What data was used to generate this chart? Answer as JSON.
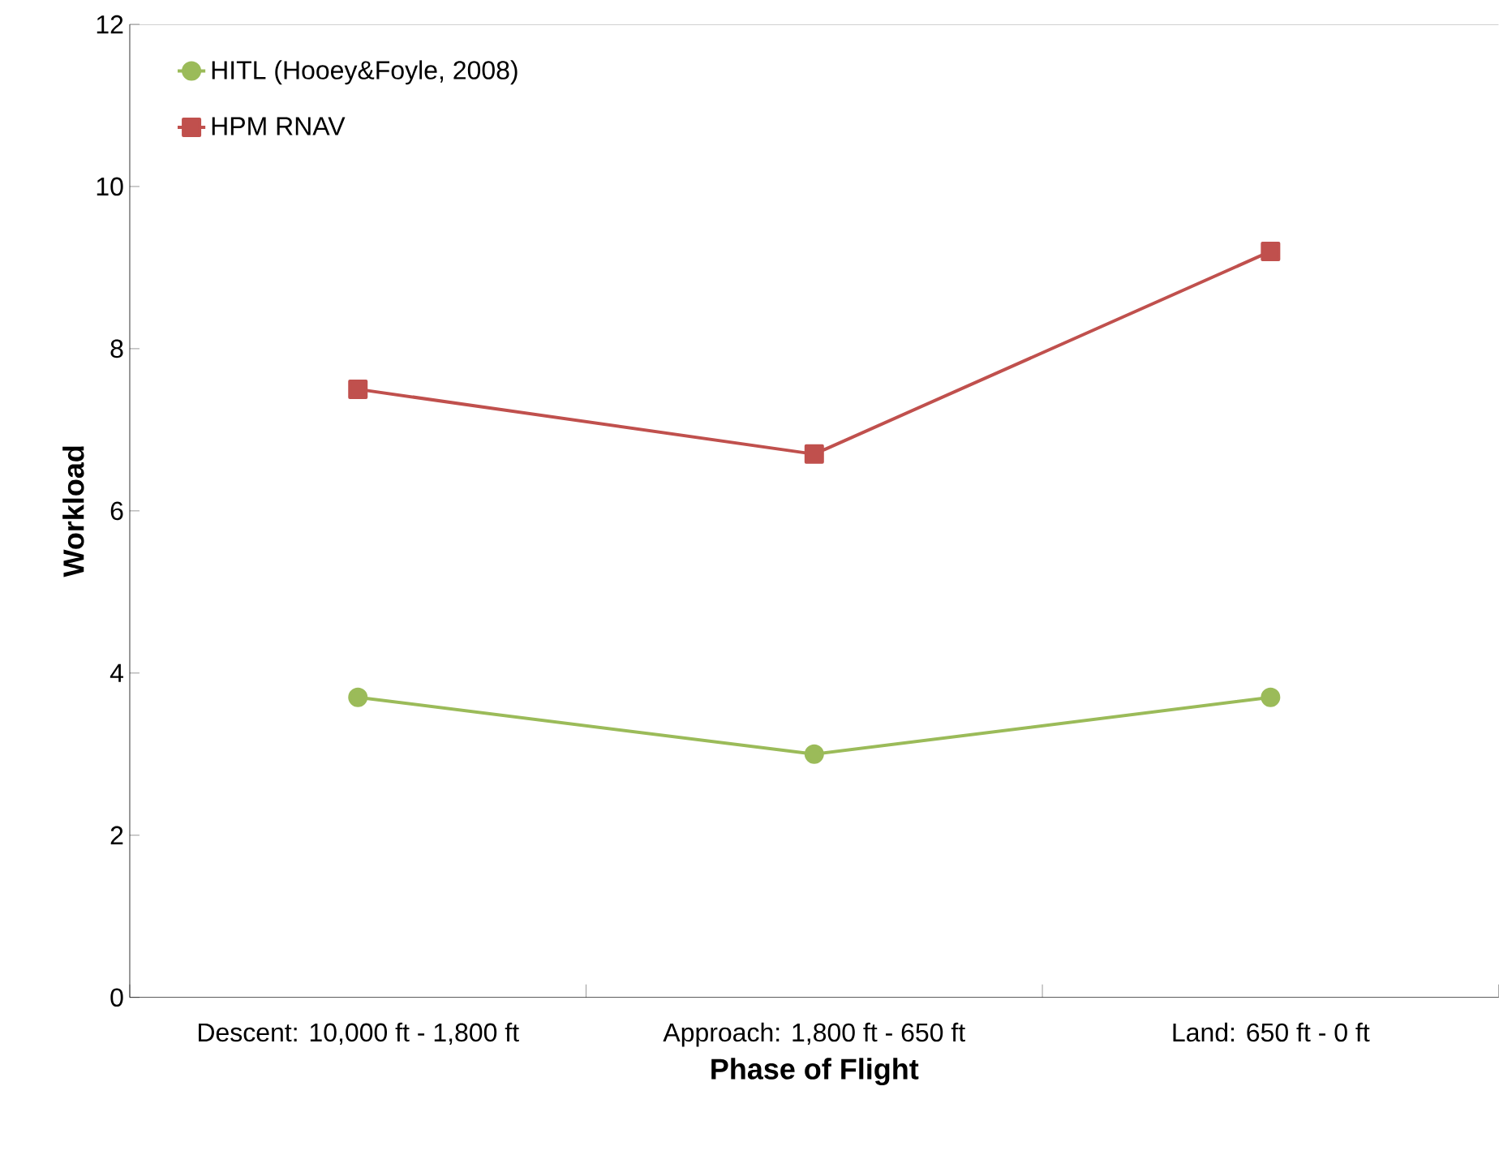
{
  "chart_data": {
    "type": "line",
    "xlabel": "Phase of Flight",
    "ylabel": "Workload",
    "categories": [
      "Descent:  10,000 ft - 1,800 ft",
      "Approach:  1,800 ft - 650 ft",
      "Land:  650 ft - 0 ft"
    ],
    "series": [
      {
        "name": "HITL (Hooey&Foyle, 2008)",
        "color": "#9bbb59",
        "marker": "circle",
        "values": [
          3.7,
          3.0,
          3.7
        ]
      },
      {
        "name": "HPM RNAV",
        "color": "#c0504d",
        "marker": "square",
        "values": [
          7.5,
          6.7,
          9.2
        ]
      }
    ],
    "ylim": [
      0,
      12
    ],
    "yticks": [
      0,
      2,
      4,
      6,
      8,
      10,
      12
    ],
    "legend": "top left",
    "grid": false
  }
}
